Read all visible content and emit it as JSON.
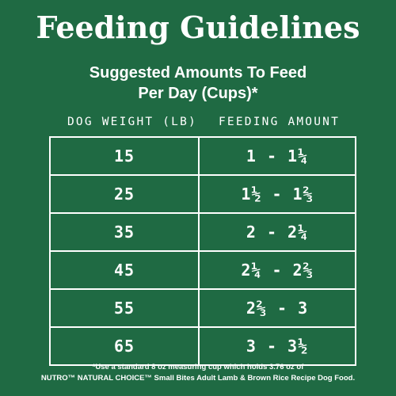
{
  "title": "Feeding Guidelines",
  "subtitle": {
    "line1": "Suggested Amounts To Feed",
    "line2": "Per Day (Cups)*"
  },
  "columns": {
    "weight": "DOG WEIGHT (LB)",
    "amount": "FEEDING AMOUNT"
  },
  "rows": [
    {
      "weight": "15",
      "amount": "1 - 1¼"
    },
    {
      "weight": "25",
      "amount": "1½ - 1⅔"
    },
    {
      "weight": "35",
      "amount": "2 - 2¼"
    },
    {
      "weight": "45",
      "amount": "2¼ - 2⅔"
    },
    {
      "weight": "55",
      "amount": "2⅔ - 3"
    },
    {
      "weight": "65",
      "amount": "3 - 3½"
    }
  ],
  "footnote": {
    "line1": "*Use a standard 8 oz measuring cup which holds 3.76 oz of",
    "line2": "NUTRO™ NATURAL CHOICE™ Small Bites Adult Lamb & Brown Rice Recipe Dog Food."
  },
  "colors": {
    "background": "#1f6a43",
    "text": "#ffffff"
  }
}
